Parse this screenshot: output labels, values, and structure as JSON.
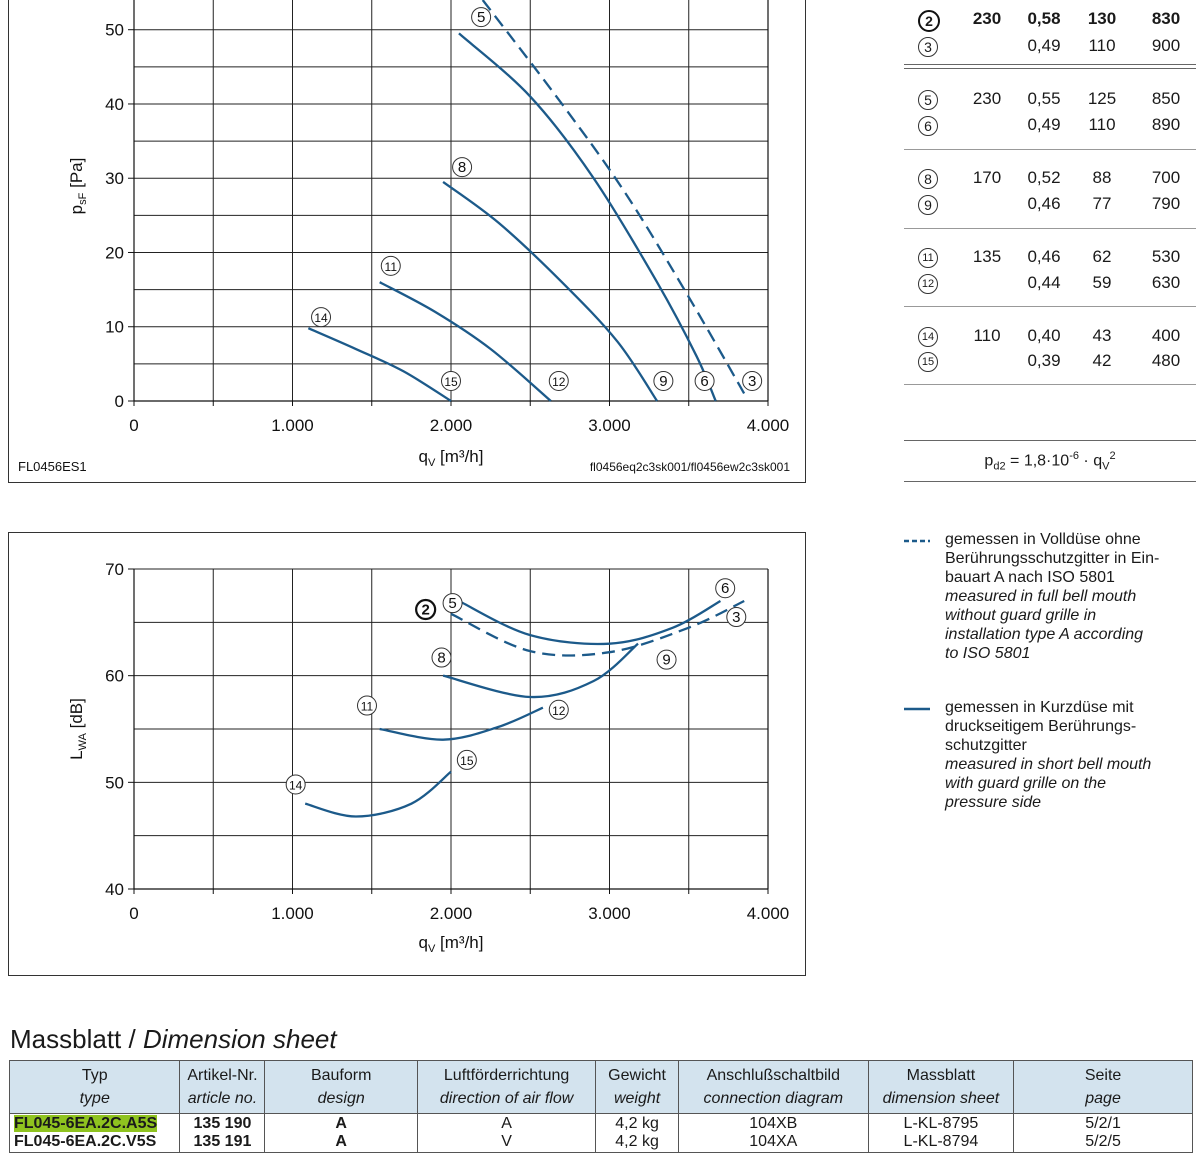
{
  "chart_data": [
    {
      "type": "line",
      "id": "pressure",
      "ylabel": "p_sF [Pa]",
      "xlabel": "q_V [m³/h]",
      "xlim": [
        0,
        4000
      ],
      "ylim": [
        0,
        54
      ],
      "x_ticks": [
        "0",
        "1.000",
        "2.000",
        "3.000",
        "4.000"
      ],
      "y_ticks": [
        "0",
        "10",
        "20",
        "30",
        "40",
        "50"
      ],
      "footer_left": "FL0456ES1",
      "footer_right": "fl0456eq2c3sk001/fl0456ew2c3sk001",
      "series": [
        {
          "name": "3",
          "style": "dashed",
          "points": [
            [
              2200,
              54
            ],
            [
              2700,
              40
            ],
            [
              3100,
              28
            ],
            [
              3500,
              14
            ],
            [
              3850,
              1
            ]
          ]
        },
        {
          "name": "5",
          "style": "solid",
          "points": [
            [
              2050,
              49.5
            ],
            [
              2500,
              41
            ],
            [
              2900,
              30
            ],
            [
              3300,
              16
            ],
            [
              3550,
              6
            ],
            [
              3670,
              0
            ]
          ]
        },
        {
          "name": "8",
          "style": "solid",
          "points": [
            [
              1950,
              29.5
            ],
            [
              2300,
              24
            ],
            [
              2700,
              16
            ],
            [
              3050,
              8
            ],
            [
              3300,
              0
            ]
          ]
        },
        {
          "name": "11",
          "style": "solid",
          "points": [
            [
              1550,
              16
            ],
            [
              1900,
              12
            ],
            [
              2250,
              7
            ],
            [
              2630,
              0
            ]
          ]
        },
        {
          "name": "14",
          "style": "solid",
          "points": [
            [
              1100,
              9.8
            ],
            [
              1400,
              7
            ],
            [
              1700,
              4
            ],
            [
              2000,
              0
            ]
          ]
        }
      ],
      "labels": [
        {
          "text": "5",
          "x": 2190,
          "y": 51.7
        },
        {
          "text": "8",
          "x": 2070,
          "y": 31.5
        },
        {
          "text": "11",
          "x": 1620,
          "y": 18.2
        },
        {
          "text": "14",
          "x": 1180,
          "y": 11.3
        },
        {
          "text": "15",
          "x": 2000,
          "y": 2.7
        },
        {
          "text": "12",
          "x": 2680,
          "y": 2.7
        },
        {
          "text": "9",
          "x": 3340,
          "y": 2.7
        },
        {
          "text": "6",
          "x": 3600,
          "y": 2.7
        },
        {
          "text": "3",
          "x": 3900,
          "y": 2.7
        }
      ]
    },
    {
      "type": "line",
      "id": "sound",
      "ylabel": "L_WA [dB]",
      "xlabel": "q_V [m³/h]",
      "xlim": [
        0,
        4000
      ],
      "ylim": [
        40,
        70
      ],
      "x_ticks": [
        "0",
        "1.000",
        "2.000",
        "3.000",
        "4.000"
      ],
      "y_ticks": [
        "40",
        "50",
        "60",
        "70"
      ],
      "series": [
        {
          "name": "2/3",
          "style": "dashed",
          "points": [
            [
              2000,
              65.8
            ],
            [
              2500,
              62.3
            ],
            [
              3000,
              62.2
            ],
            [
              3500,
              64.5
            ],
            [
              3850,
              67
            ]
          ]
        },
        {
          "name": "5/6",
          "style": "solid",
          "points": [
            [
              2050,
              67
            ],
            [
              2500,
              63.8
            ],
            [
              3000,
              63
            ],
            [
              3400,
              64.5
            ],
            [
              3700,
              67
            ]
          ]
        },
        {
          "name": "8/9",
          "style": "solid",
          "points": [
            [
              1950,
              60
            ],
            [
              2500,
              58
            ],
            [
              2900,
              59.5
            ],
            [
              3180,
              63
            ]
          ]
        },
        {
          "name": "11/12",
          "style": "solid",
          "points": [
            [
              1550,
              55
            ],
            [
              1950,
              54
            ],
            [
              2300,
              55.2
            ],
            [
              2580,
              57
            ]
          ]
        },
        {
          "name": "14/15",
          "style": "solid",
          "points": [
            [
              1080,
              48
            ],
            [
              1400,
              46.8
            ],
            [
              1750,
              48
            ],
            [
              2000,
              51
            ]
          ]
        }
      ],
      "labels": [
        {
          "text": "2",
          "x": 1840,
          "y": 66.2,
          "bold": true
        },
        {
          "text": "5",
          "x": 2010,
          "y": 66.8
        },
        {
          "text": "6",
          "x": 3730,
          "y": 68.2
        },
        {
          "text": "3",
          "x": 3800,
          "y": 65.5
        },
        {
          "text": "8",
          "x": 1940,
          "y": 61.7
        },
        {
          "text": "9",
          "x": 3360,
          "y": 61.5
        },
        {
          "text": "11",
          "x": 1470,
          "y": 57.2
        },
        {
          "text": "12",
          "x": 2680,
          "y": 56.8
        },
        {
          "text": "15",
          "x": 2100,
          "y": 52.1
        },
        {
          "text": "14",
          "x": 1020,
          "y": 49.8
        }
      ]
    }
  ],
  "op_table": {
    "rows": [
      {
        "n": "2",
        "v": "230",
        "i": "0,58",
        "p": "130",
        "rpm": "830",
        "bold": true
      },
      {
        "n": "3",
        "v": "",
        "i": "0,49",
        "p": "110",
        "rpm": "900"
      },
      {
        "n": "5",
        "v": "230",
        "i": "0,55",
        "p": "125",
        "rpm": "850"
      },
      {
        "n": "6",
        "v": "",
        "i": "0,49",
        "p": "110",
        "rpm": "890"
      },
      {
        "n": "8",
        "v": "170",
        "i": "0,52",
        "p": "88",
        "rpm": "700"
      },
      {
        "n": "9",
        "v": "",
        "i": "0,46",
        "p": "77",
        "rpm": "790"
      },
      {
        "n": "11",
        "v": "135",
        "i": "0,46",
        "p": "62",
        "rpm": "530"
      },
      {
        "n": "12",
        "v": "",
        "i": "0,44",
        "p": "59",
        "rpm": "630"
      },
      {
        "n": "14",
        "v": "110",
        "i": "0,40",
        "p": "43",
        "rpm": "400"
      },
      {
        "n": "15",
        "v": "",
        "i": "0,39",
        "p": "42",
        "rpm": "480"
      }
    ],
    "formula": {
      "base": "p",
      "sub": "d2",
      "mid": " = 1,8·10",
      "exp": "-6",
      "mid2": " · q",
      "sub2": "V",
      "exp2": "2"
    }
  },
  "legend": {
    "dashed": {
      "de": [
        "gemessen in Volldüse ohne",
        "Berührungsschutzgitter in Ein-",
        "bauart A nach ISO 5801"
      ],
      "en": [
        "measured in full bell mouth",
        "without guard grille in",
        "installation type A according",
        "to ISO 5801"
      ]
    },
    "solid": {
      "de": [
        "gemessen in Kurzdüse mit",
        "druckseitigem Berührungs-",
        "schutzgitter"
      ],
      "en": [
        "measured in short bell mouth",
        "with guard grille on the",
        "pressure side"
      ]
    }
  },
  "colors": {
    "curve": "#1c5a8a",
    "header_bg": "#d3e3ee",
    "highlight": "#8fc31f"
  },
  "dimension": {
    "title_de": "Massblatt / ",
    "title_en": "Dimension sheet",
    "headers": [
      {
        "de": "Typ",
        "en": "type"
      },
      {
        "de": "Artikel-Nr.",
        "en": "article no."
      },
      {
        "de": "Bauform",
        "en": "design"
      },
      {
        "de": "Luftförderrichtung",
        "en": "direction of air flow"
      },
      {
        "de": "Gewicht",
        "en": "weight"
      },
      {
        "de": "Anschlußschaltbild",
        "en": "connection diagram"
      },
      {
        "de": "Massblatt",
        "en": "dimension sheet"
      },
      {
        "de": "Seite",
        "en": "page"
      }
    ],
    "rows": [
      {
        "type": "FL045-6EA.2C.A5S",
        "article": "135 190",
        "design": "A",
        "flow": "A",
        "weight": "4,2 kg",
        "diagram": "104XB",
        "sheet": "L-KL-8795",
        "page": "5/2/1"
      },
      {
        "type": "FL045-6EA.2C.V5S",
        "article": "135 191",
        "design": "A",
        "flow": "V",
        "weight": "4,2 kg",
        "diagram": "104XA",
        "sheet": "L-KL-8794",
        "page": "5/2/5"
      }
    ]
  }
}
